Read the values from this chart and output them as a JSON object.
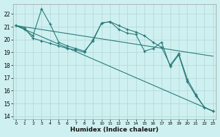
{
  "xlabel": "Humidex (Indice chaleur)",
  "background_color": "#cff0f0",
  "grid_color": "#aed4d4",
  "line_color": "#267878",
  "x_values": [
    0,
    1,
    2,
    3,
    4,
    5,
    6,
    7,
    8,
    9,
    10,
    11,
    12,
    13,
    14,
    15,
    16,
    17,
    18,
    19,
    20,
    21,
    22,
    23
  ],
  "line1_marked": [
    21.1,
    20.8,
    20.3,
    22.4,
    21.2,
    19.8,
    19.5,
    19.3,
    19.1,
    19.9,
    21.3,
    21.4,
    20.8,
    20.5,
    20.4,
    19.1,
    19.3,
    19.8,
    17.9,
    18.8,
    16.7,
    15.6,
    14.7,
    14.4
  ],
  "line2_marked": [
    21.1,
    20.9,
    20.1,
    19.9,
    19.7,
    19.5,
    19.3,
    19.2,
    19.0,
    20.0,
    21.3,
    21.4,
    21.1,
    20.8,
    20.6,
    20.3,
    19.8,
    19.4,
    18.0,
    18.9,
    16.9,
    15.7,
    14.7,
    14.4
  ],
  "line_straight1": [
    21.1,
    14.4
  ],
  "line_straight2": [
    21.1,
    18.7
  ],
  "ylim": [
    13.8,
    22.8
  ],
  "xlim": [
    -0.3,
    23.3
  ],
  "yticks": [
    14,
    15,
    16,
    17,
    18,
    19,
    20,
    21,
    22
  ],
  "xticks": [
    0,
    1,
    2,
    3,
    4,
    5,
    6,
    7,
    8,
    9,
    10,
    11,
    12,
    13,
    14,
    15,
    16,
    17,
    18,
    19,
    20,
    21,
    22,
    23
  ]
}
